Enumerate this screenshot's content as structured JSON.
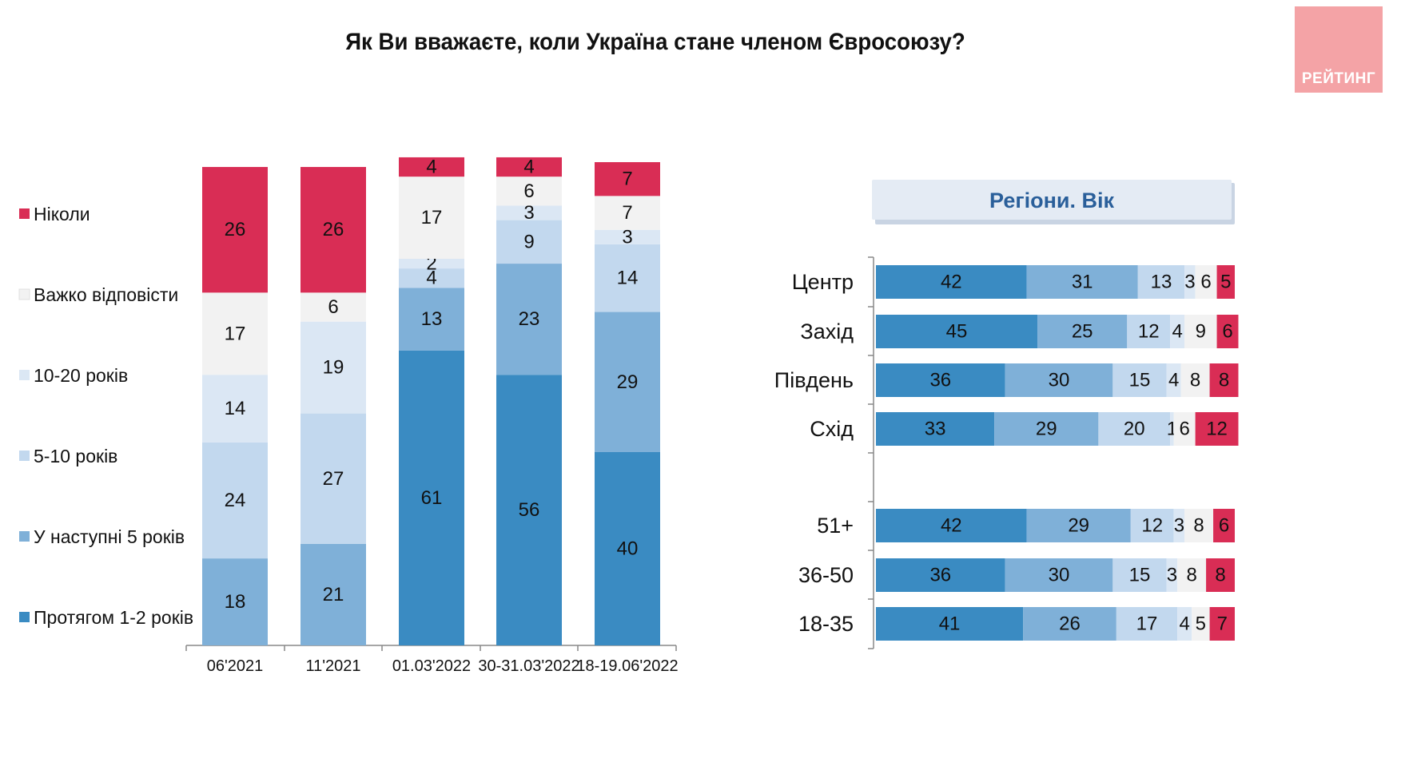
{
  "title": "Як Ви вважаєте, коли Україна стане членом Євросоюзу?",
  "logo": {
    "text": "РЕЙТИНГ"
  },
  "colors": {
    "Ніколи": "#d92d55",
    "Важко відповісти": "#f2f2f2",
    "10-20 років": "#dbe7f4",
    "5-10 років": "#c2d8ee",
    "У наступні 5 років": "#7fb0d8",
    "Протягом 1-2 років": "#3a8bc2"
  },
  "chart_data": [
    {
      "type": "bar",
      "orientation": "vertical",
      "stacked": true,
      "legend_position": "left",
      "categories": [
        "06'2021",
        "11'2021",
        "01.03'2022",
        "30-31.03'2022",
        "18-19.06'2022"
      ],
      "series": [
        {
          "name": "Протягом 1-2 років",
          "values": [
            0,
            0,
            61,
            56,
            40
          ]
        },
        {
          "name": "У наступні 5 років",
          "values": [
            18,
            21,
            13,
            23,
            29
          ]
        },
        {
          "name": "5-10 років",
          "values": [
            24,
            27,
            4,
            9,
            14
          ]
        },
        {
          "name": "10-20 років",
          "values": [
            14,
            19,
            2,
            3,
            3
          ]
        },
        {
          "name": "Важко відповісти",
          "values": [
            17,
            6,
            17,
            6,
            7
          ]
        },
        {
          "name": "Ніколи",
          "values": [
            26,
            26,
            4,
            4,
            7
          ]
        }
      ]
    },
    {
      "type": "bar",
      "orientation": "horizontal",
      "stacked": true,
      "title": "Регіони. Вік",
      "categories": [
        "Центр",
        "Захід",
        "Південь",
        "Схід",
        "51+",
        "36-50",
        "18-35"
      ],
      "series": [
        {
          "name": "Протягом 1-2 років",
          "values": [
            42,
            45,
            36,
            33,
            42,
            36,
            41
          ]
        },
        {
          "name": "У наступні 5 років",
          "values": [
            31,
            25,
            30,
            29,
            29,
            30,
            26
          ]
        },
        {
          "name": "5-10 років",
          "values": [
            13,
            12,
            15,
            20,
            12,
            15,
            17
          ]
        },
        {
          "name": "10-20 років",
          "values": [
            3,
            4,
            4,
            1,
            3,
            3,
            4
          ]
        },
        {
          "name": "Важко відповісти",
          "values": [
            6,
            9,
            8,
            6,
            8,
            8,
            5
          ]
        },
        {
          "name": "Ніколи",
          "values": [
            5,
            6,
            8,
            12,
            6,
            8,
            7
          ]
        }
      ]
    }
  ]
}
